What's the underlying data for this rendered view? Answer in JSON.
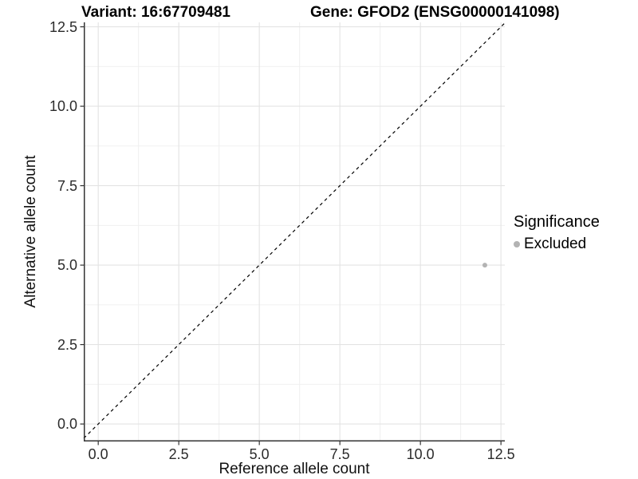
{
  "chart_data": {
    "type": "scatter",
    "title_left": "Variant: 16:67709481",
    "title_right": "Gene: GFOD2 (ENSG00000141098)",
    "xlabel": "Reference allele count",
    "ylabel": "Alternative allele count",
    "xlim": [
      -0.45,
      12.62
    ],
    "ylim": [
      -0.55,
      12.64
    ],
    "xticks": [
      0.0,
      2.5,
      5.0,
      7.5,
      10.0,
      12.5
    ],
    "yticks": [
      0.0,
      2.5,
      5.0,
      7.5,
      10.0,
      12.5
    ],
    "tick_decimals": 1,
    "grid": "major+minor",
    "legend_position": "right",
    "reference_line": {
      "slope": 1,
      "intercept": 0,
      "style": "dashed",
      "color": "#000000"
    },
    "series": [
      {
        "name": "Excluded",
        "color": "#b3b3b3",
        "points": [
          {
            "x": 12,
            "y": 5
          }
        ]
      }
    ],
    "legend": {
      "title": "Significance",
      "items": [
        {
          "label": "Excluded",
          "color": "#b3b3b3"
        }
      ]
    }
  },
  "colors": {
    "background": "#ffffff",
    "grid_major": "#e3e3e3",
    "grid_minor": "#f0f0f0",
    "axis_line": "#333333",
    "tick_mark": "#333333",
    "title_text": "#000000",
    "point": "#b3b3b3"
  }
}
